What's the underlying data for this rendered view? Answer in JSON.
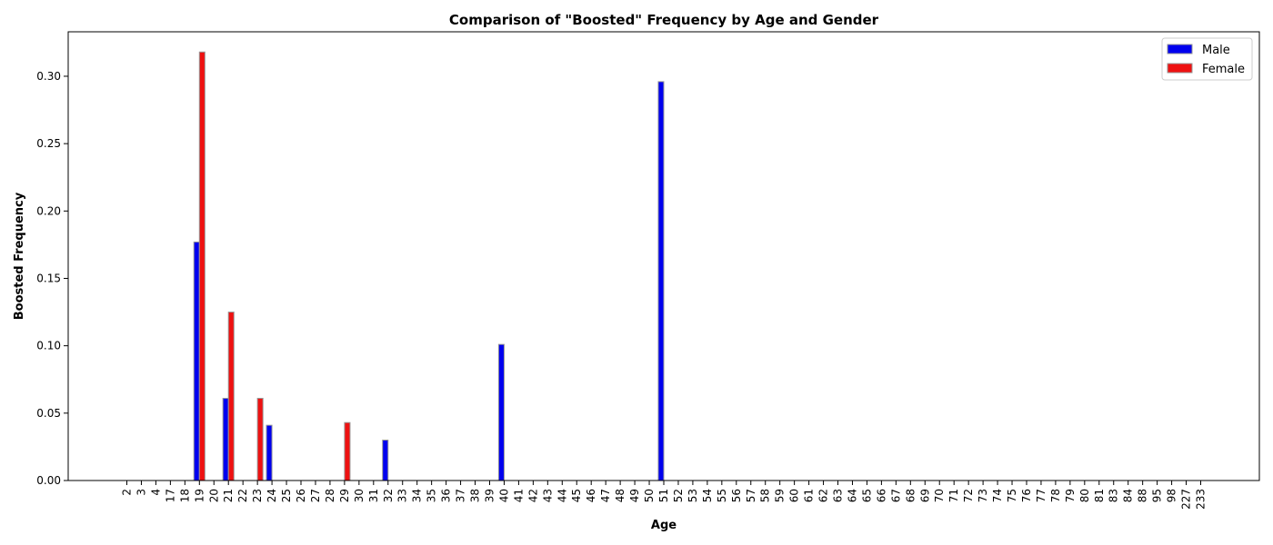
{
  "chart_data": {
    "type": "bar",
    "title": "Comparison of \"Boosted\" Frequency by Age and Gender",
    "xlabel": "Age",
    "ylabel": "Boosted Frequency",
    "ylim": [
      0,
      0.333
    ],
    "yticks": [
      "0.00",
      "0.05",
      "0.10",
      "0.15",
      "0.20",
      "0.25",
      "0.30"
    ],
    "grid": false,
    "legend_position": "top-right",
    "categories": [
      "2",
      "3",
      "4",
      "17",
      "18",
      "19",
      "20",
      "21",
      "22",
      "23",
      "24",
      "25",
      "26",
      "27",
      "28",
      "29",
      "30",
      "31",
      "32",
      "33",
      "34",
      "35",
      "36",
      "37",
      "38",
      "39",
      "40",
      "41",
      "42",
      "43",
      "44",
      "45",
      "46",
      "47",
      "48",
      "49",
      "50",
      "51",
      "52",
      "53",
      "54",
      "55",
      "56",
      "57",
      "58",
      "59",
      "60",
      "61",
      "62",
      "63",
      "64",
      "65",
      "66",
      "67",
      "68",
      "69",
      "70",
      "71",
      "72",
      "73",
      "74",
      "75",
      "76",
      "77",
      "78",
      "79",
      "80",
      "81",
      "83",
      "84",
      "88",
      "95",
      "98",
      "227",
      "233"
    ],
    "series": [
      {
        "name": "Male",
        "color": "#0000ee",
        "values": [
          0,
          0,
          0,
          0,
          0,
          0.177,
          0,
          0.061,
          0,
          0,
          0.041,
          0,
          0,
          0,
          0,
          0,
          0,
          0,
          0.03,
          0,
          0,
          0,
          0,
          0,
          0,
          0,
          0.101,
          0,
          0,
          0,
          0,
          0,
          0,
          0,
          0,
          0,
          0,
          0.296,
          0,
          0,
          0,
          0,
          0,
          0,
          0,
          0,
          0,
          0,
          0,
          0,
          0,
          0,
          0,
          0,
          0,
          0,
          0,
          0,
          0,
          0,
          0,
          0,
          0,
          0,
          0,
          0,
          0,
          0,
          0,
          0,
          0,
          0,
          0,
          0,
          0
        ]
      },
      {
        "name": "Female",
        "color": "#ee1111",
        "values": [
          0,
          0,
          0,
          0,
          0,
          0.318,
          0,
          0.125,
          0,
          0.061,
          0,
          0,
          0,
          0,
          0,
          0.043,
          0,
          0,
          0,
          0,
          0,
          0,
          0,
          0,
          0,
          0,
          0,
          0,
          0,
          0,
          0,
          0,
          0,
          0,
          0,
          0,
          0,
          0,
          0,
          0,
          0,
          0,
          0,
          0,
          0,
          0,
          0,
          0,
          0,
          0,
          0,
          0,
          0,
          0,
          0,
          0,
          0,
          0,
          0,
          0,
          0,
          0,
          0,
          0,
          0,
          0,
          0,
          0,
          0,
          0,
          0,
          0,
          0,
          0,
          0
        ]
      }
    ]
  }
}
